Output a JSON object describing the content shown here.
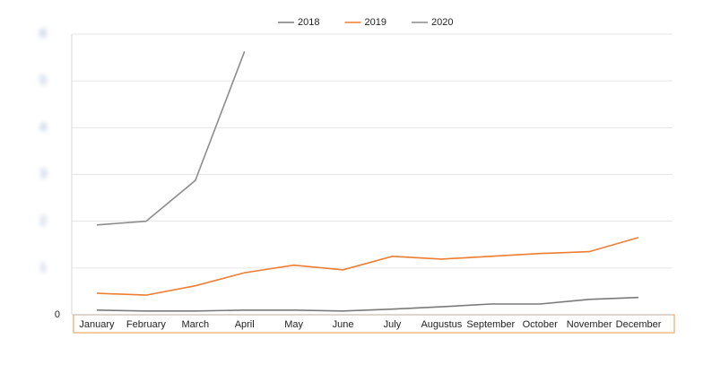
{
  "chart_data": {
    "type": "line",
    "categories": [
      "January",
      "February",
      "March",
      "April",
      "May",
      "June",
      "July",
      "Augustus",
      "September",
      "October",
      "November",
      "December"
    ],
    "series": [
      {
        "name": "2018",
        "color": "#7a7a7a",
        "values": [
          0.1,
          0.08,
          0.08,
          0.1,
          0.1,
          0.08,
          0.12,
          0.17,
          0.23,
          0.23,
          0.33,
          0.37
        ]
      },
      {
        "name": "2019",
        "color": "#ed7d31",
        "values": [
          0.46,
          0.42,
          0.62,
          0.9,
          1.06,
          0.96,
          1.25,
          1.19,
          1.25,
          1.31,
          1.35,
          1.65
        ]
      },
      {
        "name": "2020",
        "color": "#8c8c8c",
        "values": [
          1.92,
          2.0,
          2.87,
          5.63,
          null,
          null,
          null,
          null,
          null,
          null,
          null,
          null
        ]
      }
    ],
    "ylim": [
      0,
      6
    ],
    "yticks": [
      0,
      1,
      2,
      3,
      4,
      5,
      6
    ],
    "grid": true,
    "legend": "top"
  }
}
